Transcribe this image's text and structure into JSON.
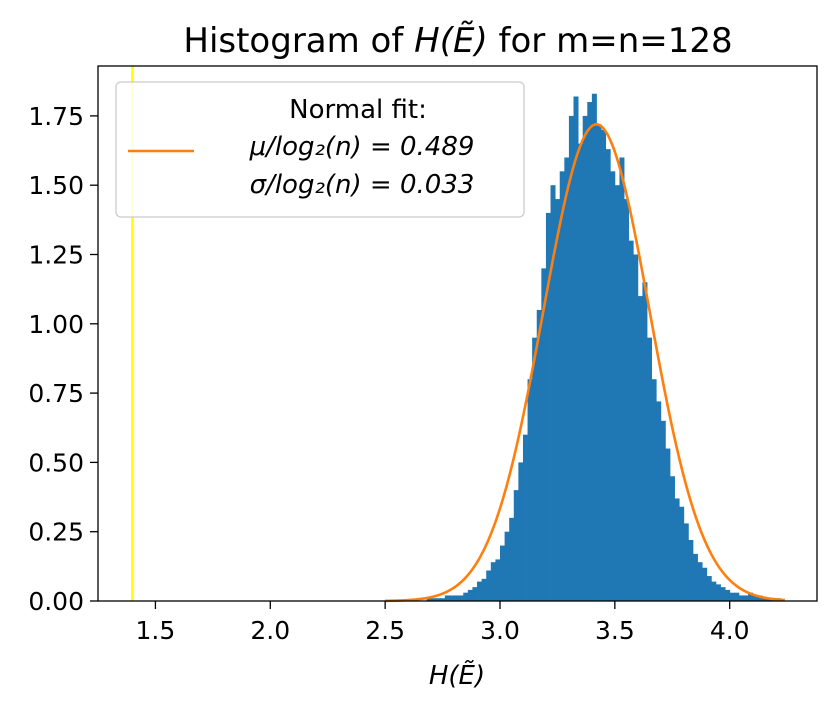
{
  "chart_data": {
    "type": "bar",
    "title_text": "Histogram of ",
    "title_math": "H(Ẽ)",
    "title_suffix": " for m=n=128",
    "xlabel": "H(Ẽ)",
    "ylabel": "",
    "xlim": [
      1.25,
      4.38
    ],
    "ylim": [
      0,
      1.93
    ],
    "xticks": [
      1.5,
      2.0,
      2.5,
      3.0,
      3.5,
      4.0
    ],
    "xtick_labels": [
      "1.5",
      "2.0",
      "2.5",
      "3.0",
      "3.5",
      "4.0"
    ],
    "yticks": [
      0,
      0.25,
      0.5,
      0.75,
      1.0,
      1.25,
      1.5,
      1.75
    ],
    "ytick_labels": [
      "0.00",
      "0.25",
      "0.50",
      "0.75",
      "1.00",
      "1.25",
      "1.50",
      "1.75"
    ],
    "histogram": {
      "color": "#1f77b4",
      "bin_width": 0.02,
      "bins": [
        [
          2.68,
          0.01
        ],
        [
          2.7,
          0.01
        ],
        [
          2.72,
          0.01
        ],
        [
          2.74,
          0.01
        ],
        [
          2.76,
          0.02
        ],
        [
          2.78,
          0.02
        ],
        [
          2.8,
          0.02
        ],
        [
          2.82,
          0.02
        ],
        [
          2.84,
          0.03
        ],
        [
          2.86,
          0.04
        ],
        [
          2.88,
          0.05
        ],
        [
          2.9,
          0.07
        ],
        [
          2.92,
          0.08
        ],
        [
          2.94,
          0.11
        ],
        [
          2.96,
          0.14
        ],
        [
          2.98,
          0.15
        ],
        [
          3.0,
          0.2
        ],
        [
          3.02,
          0.25
        ],
        [
          3.04,
          0.3
        ],
        [
          3.06,
          0.4
        ],
        [
          3.08,
          0.5
        ],
        [
          3.1,
          0.6
        ],
        [
          3.12,
          0.8
        ],
        [
          3.14,
          0.95
        ],
        [
          3.16,
          1.05
        ],
        [
          3.18,
          1.2
        ],
        [
          3.2,
          1.4
        ],
        [
          3.22,
          1.5
        ],
        [
          3.24,
          1.45
        ],
        [
          3.26,
          1.55
        ],
        [
          3.28,
          1.6
        ],
        [
          3.3,
          1.75
        ],
        [
          3.32,
          1.82
        ],
        [
          3.34,
          1.65
        ],
        [
          3.36,
          1.75
        ],
        [
          3.38,
          1.8
        ],
        [
          3.4,
          1.83
        ],
        [
          3.42,
          1.72
        ],
        [
          3.44,
          1.7
        ],
        [
          3.46,
          1.63
        ],
        [
          3.48,
          1.55
        ],
        [
          3.5,
          1.5
        ],
        [
          3.52,
          1.6
        ],
        [
          3.54,
          1.45
        ],
        [
          3.56,
          1.3
        ],
        [
          3.58,
          1.25
        ],
        [
          3.6,
          1.1
        ],
        [
          3.62,
          1.15
        ],
        [
          3.64,
          0.95
        ],
        [
          3.66,
          0.8
        ],
        [
          3.68,
          0.72
        ],
        [
          3.7,
          0.65
        ],
        [
          3.72,
          0.55
        ],
        [
          3.74,
          0.45
        ],
        [
          3.76,
          0.37
        ],
        [
          3.78,
          0.34
        ],
        [
          3.8,
          0.28
        ],
        [
          3.82,
          0.22
        ],
        [
          3.84,
          0.17
        ],
        [
          3.86,
          0.14
        ],
        [
          3.88,
          0.12
        ],
        [
          3.9,
          0.09
        ],
        [
          3.92,
          0.07
        ],
        [
          3.94,
          0.06
        ],
        [
          3.96,
          0.05
        ],
        [
          3.98,
          0.04
        ],
        [
          4.0,
          0.03
        ],
        [
          4.02,
          0.03
        ],
        [
          4.04,
          0.02
        ],
        [
          4.06,
          0.02
        ],
        [
          4.08,
          0.03
        ],
        [
          4.1,
          0.02
        ],
        [
          4.12,
          0.02
        ],
        [
          4.14,
          0.01
        ],
        [
          4.16,
          0.01
        ],
        [
          4.18,
          0.01
        ],
        [
          4.2,
          0.01
        ]
      ]
    },
    "fit_curve": {
      "type": "line",
      "color": "#ff7f0e",
      "mu": 3.42,
      "sigma": 0.232,
      "x_range": [
        2.5,
        4.24
      ]
    },
    "reference_line": {
      "x": 1.4,
      "color": "#ffff00"
    },
    "legend": {
      "position": "upper-left",
      "header": "Normal fit:",
      "line1": "μ/log₂(n) = 0.489",
      "line2": "σ/log₂(n) = 0.033"
    }
  }
}
